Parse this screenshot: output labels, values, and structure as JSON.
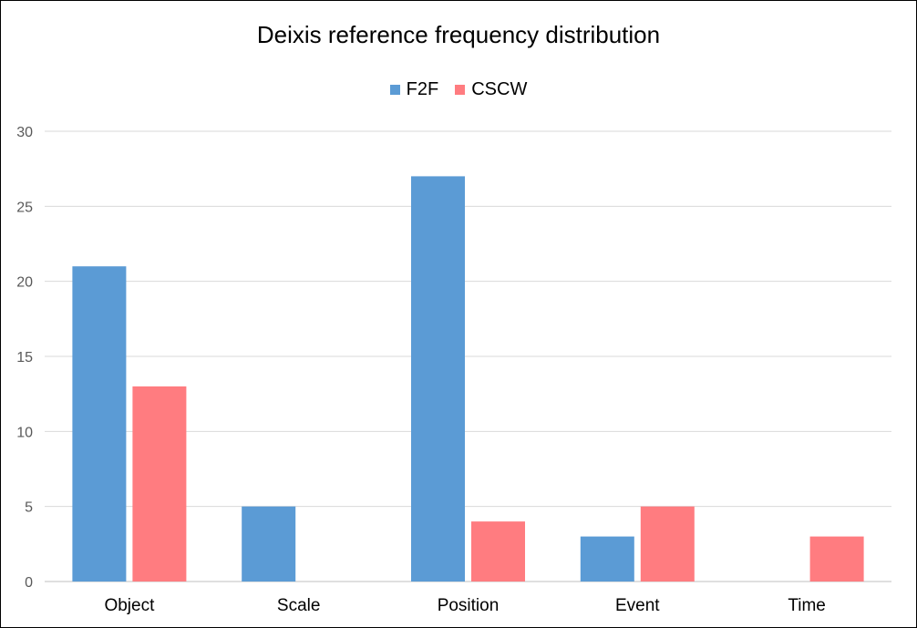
{
  "chart_data": {
    "type": "bar",
    "title": "Deixis reference frequency distribution",
    "xlabel": "",
    "ylabel": "",
    "categories": [
      "Object",
      "Scale",
      "Position",
      "Event",
      "Time"
    ],
    "series": [
      {
        "name": "F2F",
        "color": "#5B9BD5",
        "values": [
          21,
          5,
          27,
          3,
          0
        ]
      },
      {
        "name": "CSCW",
        "color": "#FF7C80",
        "values": [
          13,
          0,
          4,
          5,
          3
        ]
      }
    ],
    "ylim": [
      0,
      30
    ],
    "yticks": [
      0,
      5,
      10,
      15,
      20,
      25,
      30
    ],
    "grid": true,
    "legend_position": "top-center"
  }
}
